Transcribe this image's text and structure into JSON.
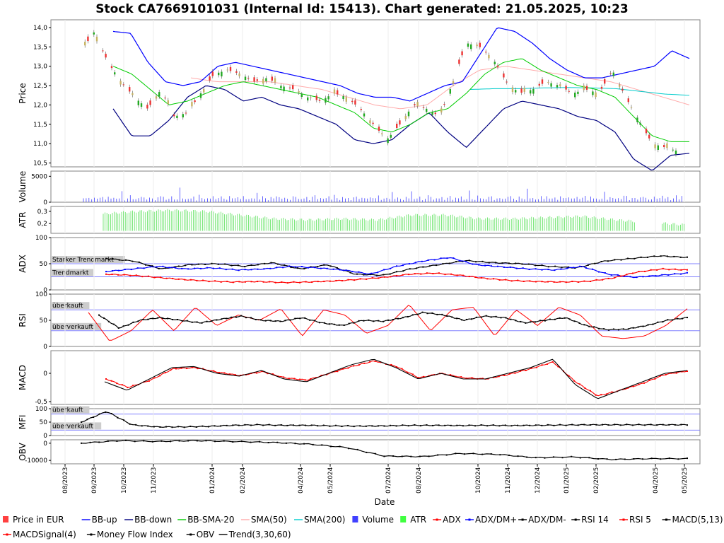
{
  "chart_data": {
    "type": "line",
    "title": "Stock CA7669101031 (Internal Id: 15413). Chart generated: 21.05.2025, 10:23",
    "xlabel": "Date",
    "x_ticks": [
      "08/2023",
      "09/2023",
      "10/2023",
      "11/2023",
      "01/2024",
      "02/2024",
      "04/2024",
      "05/2024",
      "07/2024",
      "08/2024",
      "10/2024",
      "11/2024",
      "12/2024",
      "01/2025",
      "02/2025",
      "04/2025",
      "05/2025"
    ],
    "panels": [
      {
        "id": "price",
        "ylabel": "Price",
        "ylim": [
          10.4,
          14.2
        ],
        "ticks": [
          "14,0",
          "13,5",
          "13,0",
          "12,5",
          "12,0",
          "11,5",
          "11,0",
          "10,5"
        ],
        "tick_values": [
          14.0,
          13.5,
          13.0,
          12.5,
          12.0,
          11.5,
          11.0,
          10.5
        ]
      },
      {
        "id": "volume",
        "ylabel": "Volume",
        "ylim": [
          0,
          6000
        ],
        "ticks": [
          "5000",
          "0"
        ],
        "tick_values": [
          5000,
          0
        ]
      },
      {
        "id": "atr",
        "ylabel": "ATR",
        "ylim": [
          0.12,
          0.34
        ],
        "ticks": [
          "0,3",
          "0,2"
        ],
        "tick_values": [
          0.3,
          0.2
        ]
      },
      {
        "id": "adx",
        "ylabel": "ADX",
        "ylim": [
          0,
          100
        ],
        "ticks": [
          "100",
          "50",
          "0"
        ],
        "tick_values": [
          100,
          50,
          0
        ],
        "bands": [
          {
            "label": "Starker Trendmarkt",
            "value": 50
          },
          {
            "label": "Trendmarkt",
            "value": 25
          }
        ]
      },
      {
        "id": "rsi",
        "ylabel": "RSI",
        "ylim": [
          0,
          100
        ],
        "ticks": [
          "100",
          "50",
          "0"
        ],
        "tick_values": [
          100,
          50,
          0
        ],
        "bands": [
          {
            "label": "überkauft",
            "value": 70
          },
          {
            "label": "überverkauft",
            "value": 30
          }
        ]
      },
      {
        "id": "macd",
        "ylabel": "MACD",
        "ylim": [
          -0.55,
          0.4
        ],
        "ticks": [
          "0",
          "-0,5"
        ],
        "tick_values": [
          0,
          -0.5
        ]
      },
      {
        "id": "mfi",
        "ylabel": "MFI",
        "ylim": [
          0,
          100
        ],
        "ticks": [
          "100",
          "50",
          "0"
        ],
        "tick_values": [
          100,
          50,
          0
        ],
        "bands": [
          {
            "label": "überkauft",
            "value": 80
          },
          {
            "label": "überverkauft",
            "value": 20
          }
        ]
      },
      {
        "id": "obv",
        "ylabel": "OBV",
        "ylim": [
          -12000,
          2000
        ],
        "ticks": [
          "0",
          "-10000"
        ],
        "tick_values": [
          0,
          -10000
        ]
      }
    ],
    "series": {
      "close": [
        13.4,
        13.9,
        13.1,
        12.6,
        12.2,
        11.9,
        12.4,
        11.7,
        11.8,
        12.3,
        12.8,
        12.9,
        12.8,
        12.6,
        12.7,
        12.5,
        12.4,
        12.2,
        12.1,
        12.3,
        12.2,
        11.9,
        11.5,
        11.1,
        11.5,
        12.0,
        11.9,
        11.7,
        12.6,
        13.6,
        13.5,
        13.2,
        12.6,
        12.3,
        12.4,
        12.6,
        12.5,
        12.3,
        12.4,
        12.3,
        12.9,
        12.2,
        11.6,
        11.0,
        10.9,
        10.8
      ],
      "bb_up": [
        13.9,
        13.85,
        13.1,
        12.6,
        12.5,
        12.6,
        13.0,
        13.1,
        13.0,
        12.9,
        12.8,
        12.7,
        12.6,
        12.5,
        12.3,
        12.2,
        12.2,
        12.1,
        12.3,
        12.5,
        12.6,
        13.3,
        14.0,
        13.9,
        13.6,
        13.2,
        12.9,
        12.7,
        12.7,
        12.8,
        12.9,
        13.0,
        13.4,
        13.2
      ],
      "bb_down": [
        11.9,
        11.2,
        11.2,
        11.6,
        12.2,
        12.5,
        12.4,
        12.1,
        12.2,
        12.0,
        11.9,
        11.7,
        11.5,
        11.1,
        11.0,
        11.1,
        11.5,
        11.8,
        11.3,
        10.9,
        11.4,
        11.9,
        12.1,
        12.0,
        11.9,
        11.7,
        11.6,
        11.3,
        10.6,
        10.3,
        10.7,
        10.75
      ],
      "bb_sma20": [
        13.0,
        12.8,
        12.4,
        12.0,
        12.1,
        12.3,
        12.5,
        12.6,
        12.5,
        12.4,
        12.3,
        12.2,
        12.0,
        11.8,
        11.4,
        11.3,
        11.5,
        11.8,
        11.9,
        12.3,
        12.8,
        13.1,
        13.2,
        12.9,
        12.7,
        12.5,
        12.4,
        12.2,
        11.7,
        11.2,
        11.05,
        11.05
      ],
      "sma50": [
        12.7,
        12.6,
        12.6,
        12.6,
        12.5,
        12.4,
        12.2,
        12.0,
        11.9,
        12.0,
        12.5,
        12.9,
        13.0,
        12.9,
        12.8,
        12.7,
        12.6,
        12.4,
        12.2,
        12.0
      ],
      "sma200": [
        12.4,
        12.42,
        12.42,
        12.44,
        12.45,
        12.44,
        12.42,
        12.35,
        12.28,
        12.25
      ],
      "adx": [
        30,
        28,
        24,
        20,
        17,
        15,
        16,
        14,
        15,
        17,
        20,
        24,
        30,
        32,
        28,
        22,
        18,
        16,
        15,
        16,
        22,
        34,
        40,
        38
      ],
      "adx_dm_plus": [
        35,
        40,
        45,
        40,
        42,
        38,
        40,
        45,
        42,
        38,
        30,
        45,
        55,
        62,
        48,
        44,
        40,
        38,
        45,
        30,
        24,
        28,
        32
      ],
      "adx_dm_minus": [
        60,
        55,
        40,
        48,
        50,
        45,
        52,
        40,
        48,
        30,
        28,
        40,
        48,
        56,
        52,
        50,
        45,
        42,
        55,
        60,
        65,
        62
      ],
      "rsi14": [
        60,
        35,
        50,
        55,
        50,
        45,
        52,
        58,
        50,
        48,
        55,
        45,
        40,
        50,
        48,
        55,
        65,
        60,
        50,
        58,
        55,
        45,
        50,
        55,
        40,
        32,
        33,
        40,
        50,
        55
      ],
      "rsi5": [
        65,
        10,
        30,
        70,
        30,
        75,
        40,
        60,
        50,
        72,
        20,
        70,
        60,
        25,
        40,
        80,
        30,
        70,
        75,
        20,
        70,
        40,
        75,
        60,
        20,
        15,
        20,
        40,
        72
      ],
      "macd": [
        -0.15,
        -0.3,
        -0.1,
        0.1,
        0.12,
        0.0,
        -0.05,
        0.05,
        -0.1,
        -0.15,
        0.0,
        0.15,
        0.25,
        0.1,
        -0.1,
        0.0,
        -0.1,
        -0.1,
        0.0,
        0.1,
        0.25,
        -0.2,
        -0.45,
        -0.3,
        -0.15,
        0.0,
        0.05
      ],
      "macd_signal4": [
        -0.1,
        -0.25,
        -0.12,
        0.08,
        0.1,
        0.02,
        -0.04,
        0.03,
        -0.08,
        -0.12,
        0.0,
        0.12,
        0.22,
        0.12,
        -0.08,
        0.0,
        -0.08,
        -0.1,
        -0.02,
        0.08,
        0.2,
        -0.15,
        -0.4,
        -0.3,
        -0.18,
        -0.02,
        0.04
      ],
      "mfi": [
        50,
        90,
        40,
        32,
        32,
        34,
        38,
        40,
        38,
        38,
        36,
        35,
        36,
        38,
        38,
        37,
        38,
        37,
        38,
        39,
        40,
        40,
        40,
        40,
        40
      ],
      "obv": [
        0,
        1500,
        1000,
        1500,
        1000,
        500,
        -500,
        -2500,
        -7500,
        -7800,
        -6000,
        -6500,
        -8500,
        -8000,
        -9500,
        -9000,
        -9000
      ],
      "volume_spikes": [
        600,
        900,
        800,
        500,
        1800,
        500,
        1000,
        700,
        500,
        1500,
        600,
        1800,
        800,
        500,
        1700,
        500,
        700,
        2300
      ],
      "atr": [
        0.28,
        0.3,
        0.31,
        0.3,
        0.27,
        0.24,
        0.23,
        0.24,
        0.23,
        0.27,
        0.27,
        0.24,
        0.24,
        0.25,
        0.26,
        0.23,
        0.21,
        0.19
      ]
    },
    "legend": [
      {
        "name": "Price in EUR",
        "color": "#ff4040",
        "kind": "box"
      },
      {
        "name": "BB-up",
        "color": "#0000ff",
        "kind": "line"
      },
      {
        "name": "BB-down",
        "color": "#000080",
        "kind": "line"
      },
      {
        "name": "BB-SMA-20",
        "color": "#00cc00",
        "kind": "line"
      },
      {
        "name": "SMA(50)",
        "color": "#ffaaaa",
        "kind": "line"
      },
      {
        "name": "SMA(200)",
        "color": "#00cccc",
        "kind": "line"
      },
      {
        "name": "Volume",
        "color": "#4040ff",
        "kind": "box"
      },
      {
        "name": "ATR",
        "color": "#40ff40",
        "kind": "box"
      },
      {
        "name": "ADX",
        "color": "#ff0000",
        "kind": "marker"
      },
      {
        "name": "ADX/DM+",
        "color": "#0000ff",
        "kind": "marker"
      },
      {
        "name": "ADX/DM-",
        "color": "#000000",
        "kind": "marker"
      },
      {
        "name": "RSI 14",
        "color": "#000000",
        "kind": "marker"
      },
      {
        "name": "RSI 5",
        "color": "#ff0000",
        "kind": "marker"
      },
      {
        "name": "MACD(5,13)",
        "color": "#000000",
        "kind": "marker"
      },
      {
        "name": "MACDSignal(4)",
        "color": "#ff0000",
        "kind": "marker"
      },
      {
        "name": "Money Flow Index",
        "color": "#000000",
        "kind": "marker"
      },
      {
        "name": "OBV",
        "color": "#000000",
        "kind": "marker"
      },
      {
        "name": "Trend(3,30,60)",
        "color": "#000000",
        "kind": "line"
      }
    ]
  }
}
